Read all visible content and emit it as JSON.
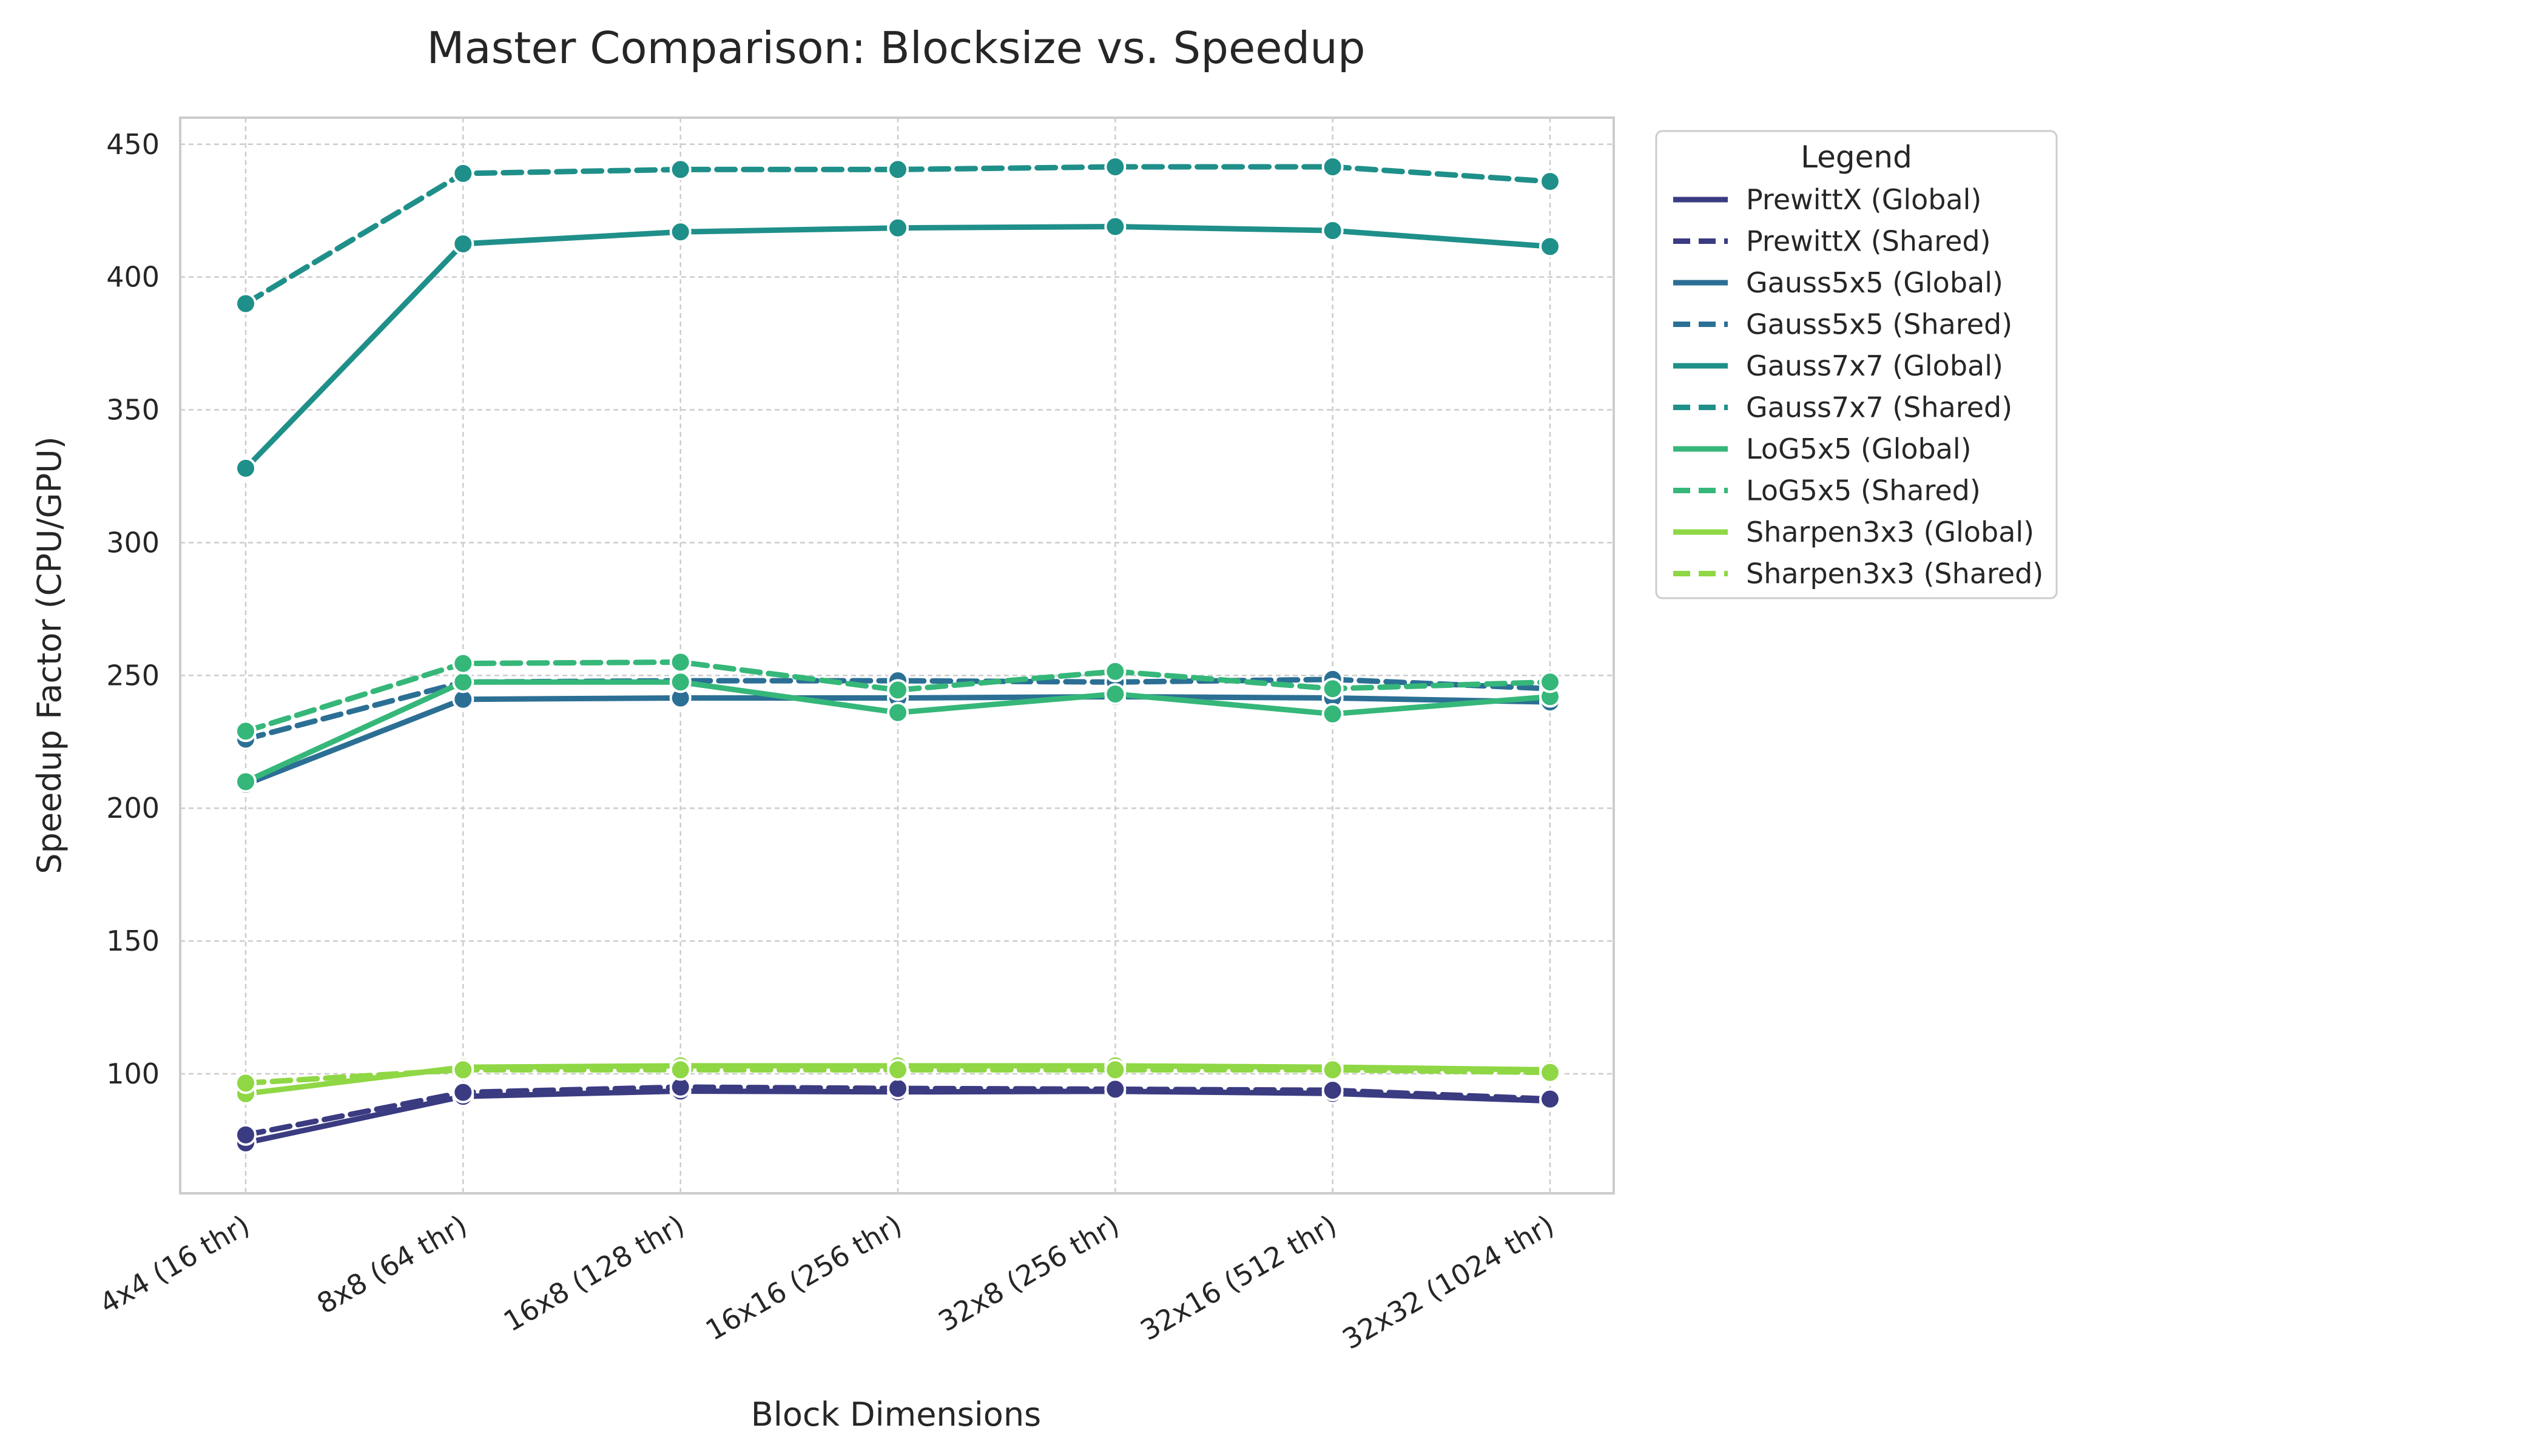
{
  "chart_data": {
    "type": "line",
    "title": "Master Comparison: Blocksize vs. Speedup",
    "xlabel": "Block Dimensions",
    "ylabel": "Speedup Factor (CPU/GPU)",
    "ylim": [
      55,
      460
    ],
    "yticks": [
      100,
      150,
      200,
      250,
      300,
      350,
      400,
      450
    ],
    "grid": true,
    "legend_title": "Legend",
    "legend_position": "outside-right-top",
    "categories": [
      "4x4 (16 thr)",
      "8x8 (64 thr)",
      "16x8 (128 thr)",
      "16x16 (256 thr)",
      "32x8 (256 thr)",
      "32x16 (512 thr)",
      "32x32 (1024 thr)"
    ],
    "series": [
      {
        "name": "PrewittX (Global)",
        "color": "#3b3b82",
        "style": "solid",
        "values": [
          74,
          91.5,
          93.5,
          93.2,
          93.4,
          92.6,
          89.8
        ]
      },
      {
        "name": "PrewittX (Shared)",
        "color": "#3b3b82",
        "style": "dashed",
        "values": [
          77,
          93,
          95,
          94.5,
          94.2,
          93.8,
          90.5
        ]
      },
      {
        "name": "Gauss5x5 (Global)",
        "color": "#2c6f95",
        "style": "solid",
        "values": [
          209,
          241,
          241.5,
          241.5,
          242,
          241.5,
          240
        ]
      },
      {
        "name": "Gauss5x5 (Shared)",
        "color": "#2c6f95",
        "style": "dashed",
        "values": [
          226,
          247.5,
          248,
          248,
          247.5,
          248.5,
          245
        ]
      },
      {
        "name": "Gauss7x7 (Global)",
        "color": "#1f8f89",
        "style": "solid",
        "values": [
          328,
          412.5,
          417,
          418.5,
          419,
          417.5,
          411.5
        ]
      },
      {
        "name": "Gauss7x7 (Shared)",
        "color": "#1f8f89",
        "style": "dashed",
        "values": [
          390,
          439,
          440.5,
          440.5,
          441.5,
          441.5,
          436
        ]
      },
      {
        "name": "LoG5x5 (Global)",
        "color": "#35b779",
        "style": "solid",
        "values": [
          210,
          247.5,
          247.5,
          236,
          243,
          235.5,
          242
        ]
      },
      {
        "name": "LoG5x5 (Shared)",
        "color": "#35b779",
        "style": "dashed",
        "values": [
          229,
          254.5,
          255,
          244.5,
          251.5,
          245,
          247.5
        ]
      },
      {
        "name": "Sharpen3x3 (Global)",
        "color": "#8fd744",
        "style": "solid",
        "values": [
          92.5,
          102.5,
          103,
          103,
          103,
          102.5,
          101.5
        ]
      },
      {
        "name": "Sharpen3x3 (Shared)",
        "color": "#8fd744",
        "style": "dashed",
        "values": [
          96.5,
          101.5,
          101.5,
          101.5,
          101.5,
          101.5,
          100.5
        ]
      }
    ]
  }
}
